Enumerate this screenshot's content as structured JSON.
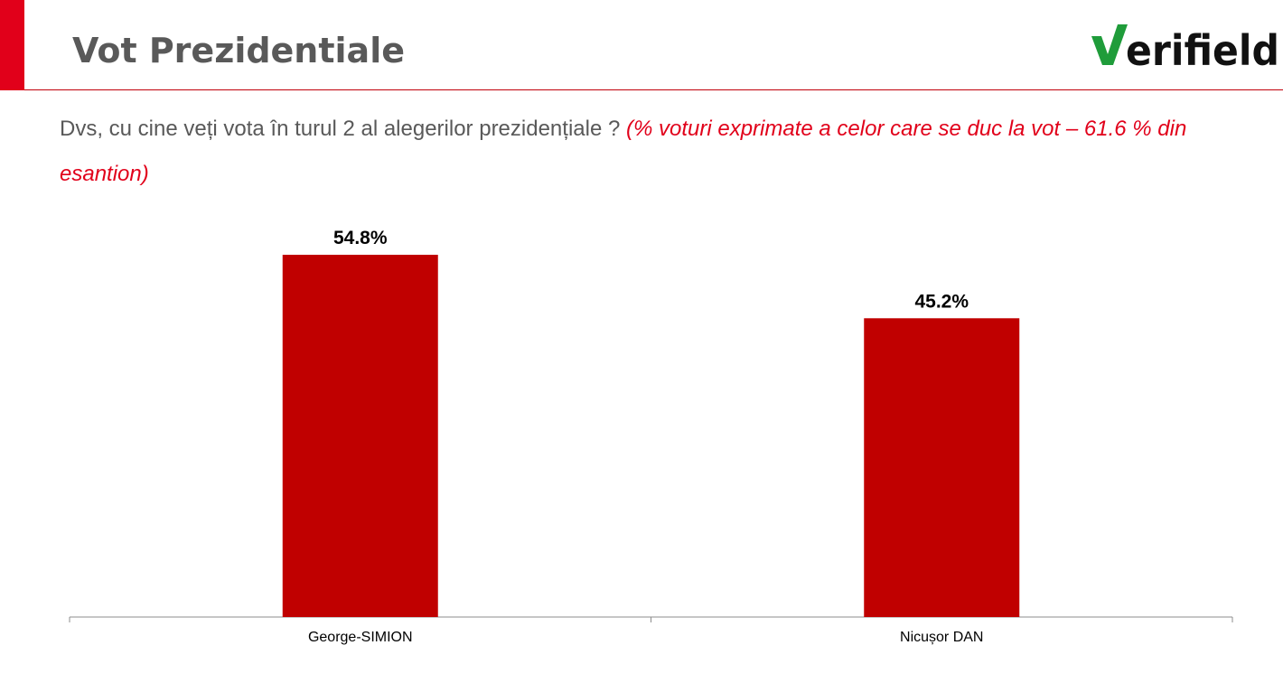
{
  "header": {
    "title": "Vot Prezidentiale",
    "logo_text": "verifield",
    "accent_color": "#e1001a"
  },
  "question": {
    "text": "Dvs, cu cine veți vota în turul 2 al alegerilor prezidențiale ?",
    "note": "(% voturi exprimate a celor care se duc la vot – 61.6 % din esantion)"
  },
  "chart_data": {
    "type": "bar",
    "categories": [
      "George-SIMION",
      "Nicușor DAN"
    ],
    "values": [
      54.8,
      45.2
    ],
    "value_labels": [
      "54.8%",
      "45.2%"
    ],
    "ylim": [
      0,
      60
    ],
    "bar_color": "#c00000",
    "grid": false,
    "legend": "none"
  }
}
